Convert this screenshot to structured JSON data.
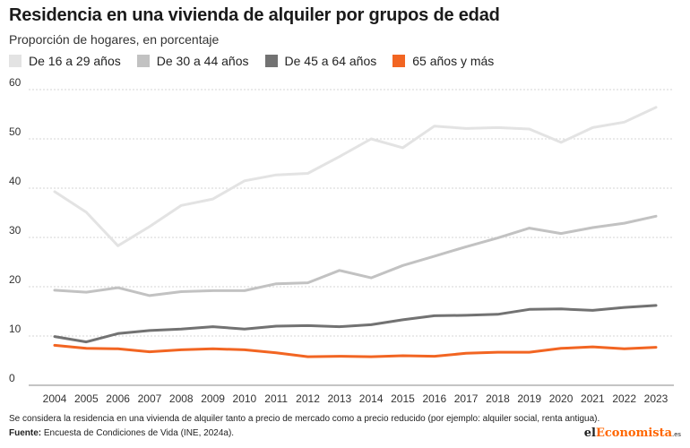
{
  "title": "Residencia en una vivienda de alquiler por grupos de edad",
  "subtitle": "Proporción de hogares, en porcentaje",
  "note": "Se considera la residencia en una vivienda de alquiler tanto a precio de mercado como a precio reducido (por ejemplo: alquiler social, renta antigua).",
  "source_label": "Fuente:",
  "source_text": " Encuesta de Condiciones de Vida (INE, 2024a).",
  "brand": {
    "prefix": "el",
    "accent": "Economista",
    "suffix": ".es"
  },
  "chart_data": {
    "type": "line",
    "title": "Residencia en una vivienda de alquiler por grupos de edad",
    "subtitle": "Proporción de hogares, en porcentaje",
    "xlabel": "",
    "ylabel": "",
    "ylim": [
      0,
      60
    ],
    "yticks": [
      0,
      10,
      20,
      30,
      40,
      50,
      60
    ],
    "grid": true,
    "legend": "top-left",
    "categories": [
      "2004",
      "2005",
      "2006",
      "2007",
      "2008",
      "2009",
      "2010",
      "2011",
      "2012",
      "2013",
      "2014",
      "2015",
      "2016",
      "2017",
      "2018",
      "2019",
      "2020",
      "2021",
      "2022",
      "2023"
    ],
    "series": [
      {
        "name": "De 16 a 29 años",
        "color": "#e3e3e3",
        "values": [
          39.3,
          35.1,
          28.3,
          32.2,
          36.5,
          37.8,
          41.5,
          42.7,
          43.0,
          46.4,
          50.0,
          48.2,
          52.6,
          52.1,
          52.3,
          52.0,
          49.3,
          52.3,
          53.4,
          56.4
        ]
      },
      {
        "name": "De 30 a 44 años",
        "color": "#c2c2c2",
        "values": [
          19.3,
          18.9,
          19.8,
          18.2,
          19.0,
          19.2,
          19.2,
          20.6,
          20.8,
          23.3,
          21.8,
          24.3,
          26.2,
          28.1,
          29.9,
          31.9,
          30.8,
          32.0,
          32.9,
          34.3
        ]
      },
      {
        "name": "De 45 a 64 años",
        "color": "#727272",
        "values": [
          9.9,
          8.8,
          10.5,
          11.1,
          11.4,
          11.9,
          11.4,
          12.0,
          12.1,
          11.9,
          12.3,
          13.3,
          14.1,
          14.2,
          14.4,
          15.4,
          15.5,
          15.2,
          15.8,
          16.2
        ]
      },
      {
        "name": "65 años y más",
        "color": "#f26522",
        "values": [
          8.1,
          7.5,
          7.4,
          6.8,
          7.2,
          7.4,
          7.2,
          6.6,
          5.8,
          5.9,
          5.8,
          6.0,
          5.9,
          6.5,
          6.7,
          6.7,
          7.5,
          7.8,
          7.4,
          7.7
        ]
      }
    ]
  }
}
